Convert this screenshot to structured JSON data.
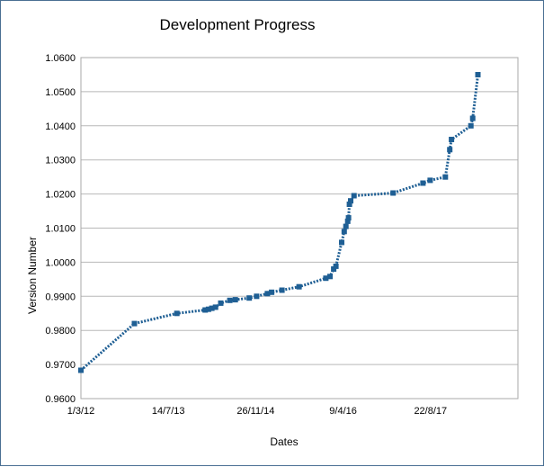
{
  "chart_data": {
    "type": "line",
    "title": "Development Progress",
    "xlabel": "Dates",
    "ylabel": "Version Number",
    "x_tick_labels": [
      "1/3/12",
      "14/7/13",
      "26/11/14",
      "9/4/16",
      "22/8/17"
    ],
    "x_ticks": [
      "2012-03-01",
      "2013-07-14",
      "2014-11-26",
      "2016-04-09",
      "2017-08-22"
    ],
    "xlim": [
      "2012-03-01",
      "2019-01-04"
    ],
    "y_tick_labels": [
      "0.9600",
      "0.9700",
      "0.9800",
      "0.9900",
      "1.0000",
      "1.0100",
      "1.0200",
      "1.0300",
      "1.0400",
      "1.0500",
      "1.0600"
    ],
    "ylim": [
      0.96,
      1.06
    ],
    "grid": "horizontal",
    "line_style": "dotted",
    "series_color": "#1f5f94",
    "series": [
      {
        "points": [
          [
            "2012-03-01",
            0.9683
          ],
          [
            "2013-01-01",
            0.982
          ],
          [
            "2013-09-01",
            0.985
          ],
          [
            "2014-02-10",
            0.986
          ],
          [
            "2014-03-01",
            0.9862
          ],
          [
            "2014-03-20",
            0.9865
          ],
          [
            "2014-04-10",
            0.9868
          ],
          [
            "2014-05-10",
            0.988
          ],
          [
            "2014-07-01",
            0.9888
          ],
          [
            "2014-08-01",
            0.989
          ],
          [
            "2014-10-20",
            0.9895
          ],
          [
            "2014-12-01",
            0.99
          ],
          [
            "2015-02-01",
            0.9908
          ],
          [
            "2015-02-25",
            0.9912
          ],
          [
            "2015-04-25",
            0.9918
          ],
          [
            "2015-08-01",
            0.9928
          ],
          [
            "2016-01-01",
            0.9953
          ],
          [
            "2016-01-25",
            0.9958
          ],
          [
            "2016-02-15",
            0.998
          ],
          [
            "2016-02-28",
            0.9988
          ],
          [
            "2016-04-01",
            1.0058
          ],
          [
            "2016-04-15",
            1.009
          ],
          [
            "2016-04-25",
            1.0105
          ],
          [
            "2016-05-05",
            1.012
          ],
          [
            "2016-05-10",
            1.013
          ],
          [
            "2016-05-15",
            1.017
          ],
          [
            "2016-05-22",
            1.018
          ],
          [
            "2016-06-10",
            1.0195
          ],
          [
            "2017-01-20",
            1.0203
          ],
          [
            "2017-07-10",
            1.0232
          ],
          [
            "2017-08-20",
            1.024
          ],
          [
            "2017-11-15",
            1.025
          ],
          [
            "2017-12-10",
            1.033
          ],
          [
            "2017-12-20",
            1.036
          ],
          [
            "2018-04-10",
            1.04
          ],
          [
            "2018-04-20",
            1.0422
          ],
          [
            "2018-05-20",
            1.055
          ]
        ]
      }
    ]
  }
}
